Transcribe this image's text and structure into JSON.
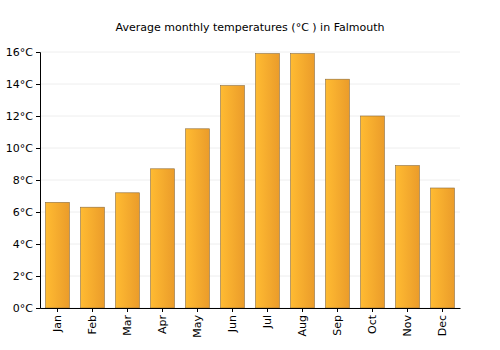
{
  "chart_data": {
    "type": "bar",
    "title": "Average monthly temperatures (°C ) in Falmouth",
    "categories": [
      "Jan",
      "Feb",
      "Mar",
      "Apr",
      "May",
      "Jun",
      "Jul",
      "Aug",
      "Sep",
      "Oct",
      "Nov",
      "Dec"
    ],
    "values": [
      6.6,
      6.3,
      7.2,
      8.7,
      11.2,
      13.9,
      15.9,
      15.9,
      14.3,
      12.0,
      8.9,
      7.5
    ],
    "color": "#f8a52c",
    "ylim": [
      0,
      16
    ],
    "yticks": [
      {
        "value": 0,
        "label": "0°C"
      },
      {
        "value": 2,
        "label": "2°C"
      },
      {
        "value": 4,
        "label": "4°C"
      },
      {
        "value": 6,
        "label": "6°C"
      },
      {
        "value": 8,
        "label": "8°C"
      },
      {
        "value": 10,
        "label": "10°C"
      },
      {
        "value": 12,
        "label": "12°C"
      },
      {
        "value": 14,
        "label": "14°C"
      },
      {
        "value": 16,
        "label": "16°C"
      }
    ],
    "grid": true
  }
}
